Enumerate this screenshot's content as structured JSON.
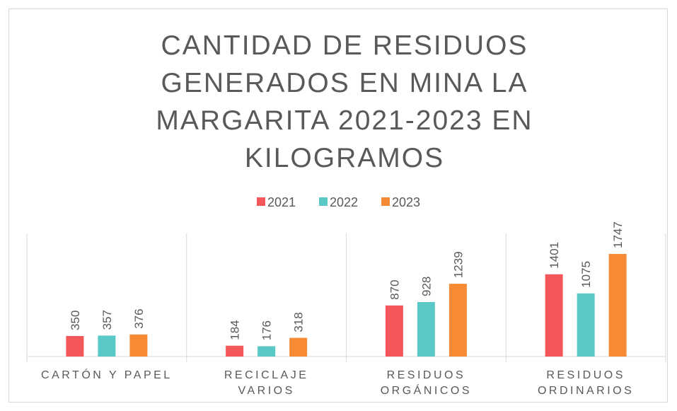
{
  "chart_data": {
    "type": "bar",
    "title": "CANTIDAD DE RESIDUOS GENERADOS EN MINA LA MARGARITA 2021-2023 EN KILOGRAMOS",
    "categories": [
      "CARTÓN Y PAPEL",
      "RECICLAJE VARIOS",
      "RESIDUOS ORGÁNICOS",
      "RESIDUOS ORDINARIOS"
    ],
    "series": [
      {
        "name": "2021",
        "color": "#f4575a",
        "values": [
          350,
          184,
          870,
          1401
        ]
      },
      {
        "name": "2022",
        "color": "#5bc8c8",
        "values": [
          357,
          176,
          928,
          1075
        ]
      },
      {
        "name": "2023",
        "color": "#f78a34",
        "values": [
          376,
          318,
          1239,
          1747
        ]
      }
    ],
    "ylim": [
      0,
      2000
    ],
    "legend": "top"
  }
}
